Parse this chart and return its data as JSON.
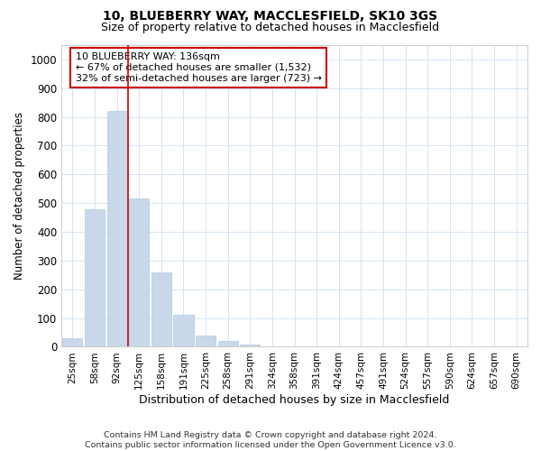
{
  "title_line1": "10, BLUEBERRY WAY, MACCLESFIELD, SK10 3GS",
  "title_line2": "Size of property relative to detached houses in Macclesfield",
  "xlabel": "Distribution of detached houses by size in Macclesfield",
  "ylabel": "Number of detached properties",
  "categories": [
    "25sqm",
    "58sqm",
    "92sqm",
    "125sqm",
    "158sqm",
    "191sqm",
    "225sqm",
    "258sqm",
    "291sqm",
    "324sqm",
    "358sqm",
    "391sqm",
    "424sqm",
    "457sqm",
    "491sqm",
    "524sqm",
    "557sqm",
    "590sqm",
    "624sqm",
    "657sqm",
    "690sqm"
  ],
  "values": [
    30,
    480,
    820,
    515,
    260,
    110,
    40,
    20,
    8,
    3,
    1,
    0,
    0,
    0,
    0,
    0,
    0,
    0,
    0,
    0,
    0
  ],
  "bar_color": "#c8d8ea",
  "bar_edge_color": "#b0c8e0",
  "grid_color": "#d4e4f4",
  "annotation_box_color": "#cc0000",
  "annotation_text": "10 BLUEBERRY WAY: 136sqm\n← 67% of detached houses are smaller (1,532)\n32% of semi-detached houses are larger (723) →",
  "vline_x_index": 3.0,
  "ylim": [
    0,
    1050
  ],
  "yticks": [
    0,
    100,
    200,
    300,
    400,
    500,
    600,
    700,
    800,
    900,
    1000
  ],
  "footnote": "Contains HM Land Registry data © Crown copyright and database right 2024.\nContains public sector information licensed under the Open Government Licence v3.0.",
  "bg_color": "#ffffff"
}
